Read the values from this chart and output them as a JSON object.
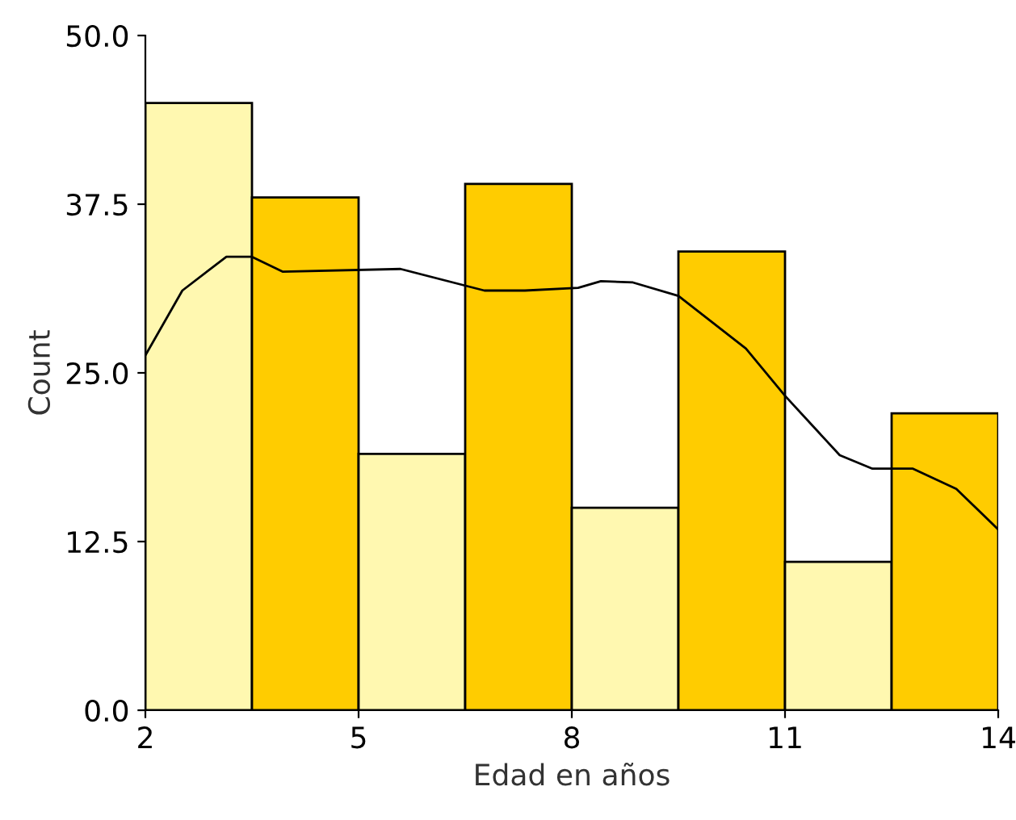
{
  "chart_data": {
    "type": "histogram",
    "xlabel": "Edad en años",
    "ylabel": "Count",
    "bins": [
      2,
      3.5,
      5,
      6.5,
      8,
      9.5,
      11,
      12.5,
      14
    ],
    "values": [
      45,
      38,
      19,
      39,
      15,
      34,
      11,
      22
    ],
    "colors": [
      "#fff8b0",
      "#ffcc00",
      "#fff8b0",
      "#ffcc00",
      "#fff8b0",
      "#ffcc00",
      "#fff8b0",
      "#ffcc00"
    ],
    "series": [
      {
        "type": "line",
        "color": "#000000",
        "x": [
          2,
          2.52,
          3.14,
          3.5,
          3.93,
          5.59,
          6.77,
          7.34,
          8.09,
          8.41,
          8.86,
          9.5,
          10.45,
          11,
          11.77,
          12.23,
          12.8,
          13.41,
          14
        ],
        "values": [
          26.3,
          31.1,
          33.6,
          33.6,
          32.5,
          32.7,
          31.1,
          31.1,
          31.3,
          31.8,
          31.7,
          30.7,
          26.8,
          23.3,
          18.9,
          17.9,
          17.9,
          16.4,
          13.4
        ]
      }
    ],
    "xlim": [
      2,
      14
    ],
    "xticks": [
      2,
      5,
      8,
      11,
      14
    ],
    "ylim": [
      0,
      50
    ],
    "yticks": [
      {
        "value": 0,
        "label": "0.0"
      },
      {
        "value": 12.5,
        "label": "12.5"
      },
      {
        "value": 25,
        "label": "25.0"
      },
      {
        "value": 37.5,
        "label": "37.5"
      },
      {
        "value": 50,
        "label": "50.0"
      }
    ],
    "grid": false,
    "legend": false
  }
}
